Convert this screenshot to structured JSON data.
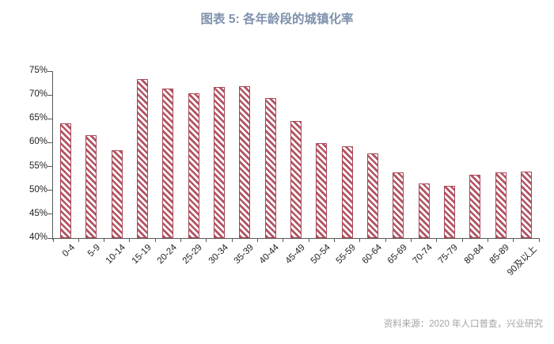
{
  "title": "图表 5: 各年龄段的城镇化率",
  "source": "资料来源：2020 年人口普查，兴业研究",
  "colors": {
    "title": "#7E91AD",
    "bar_stripe": "#B25362",
    "bar_border": "#A84755",
    "axis": "#595959",
    "tick_label": "#1F1F1F",
    "source_text": "#A3A3A3"
  },
  "chart_data": {
    "type": "bar",
    "title": "图表 5: 各年龄段的城镇化率",
    "categories": [
      "0-4",
      "5-9",
      "10-14",
      "15-19",
      "20-24",
      "25-29",
      "30-34",
      "35-39",
      "40-44",
      "45-49",
      "50-54",
      "55-59",
      "60-64",
      "65-69",
      "70-74",
      "75-79",
      "80-84",
      "85-89",
      "90及以上"
    ],
    "values": [
      64.0,
      61.5,
      58.4,
      73.3,
      71.4,
      70.3,
      71.7,
      71.9,
      69.3,
      64.6,
      59.9,
      59.2,
      57.8,
      53.8,
      51.5,
      51.0,
      53.3,
      53.8,
      54.0
    ],
    "xlabel": "",
    "ylabel": "",
    "ylim": [
      40,
      75
    ],
    "ytick_step": 5,
    "ytick_suffix": "%",
    "grid": false,
    "legend": "none",
    "bar_style": "diagonal-hatch",
    "xlabel_rotation": 45
  }
}
